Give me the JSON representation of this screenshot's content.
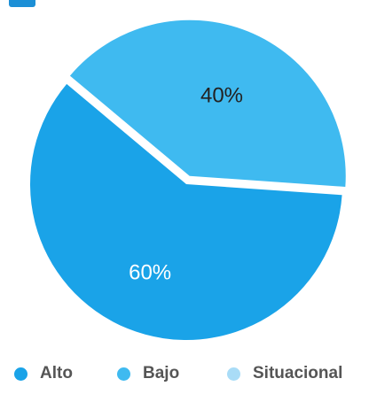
{
  "chart_data": {
    "type": "pie",
    "title": "",
    "slices": [
      {
        "label": "Bajo",
        "value": 40,
        "color": "#3fbaf0",
        "data_label": "40%"
      },
      {
        "label": "Alto",
        "value": 60,
        "color": "#1aa3e8",
        "data_label": "60%"
      },
      {
        "label": "Situacional",
        "value": 0,
        "color": "#a9dcf7",
        "data_label": ""
      }
    ],
    "legend": {
      "position": "bottom",
      "entries": [
        {
          "label": "Alto",
          "color": "#1aa3e8"
        },
        {
          "label": "Bajo",
          "color": "#3fbaf0"
        },
        {
          "label": "Situacional",
          "color": "#a9dcf7"
        }
      ]
    }
  }
}
